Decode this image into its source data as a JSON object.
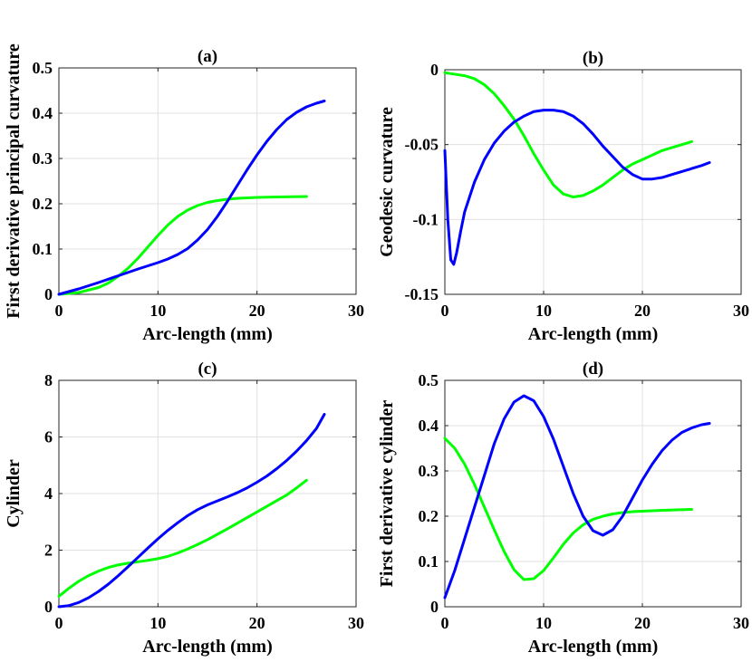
{
  "chart_data": [
    {
      "id": "a",
      "type": "line",
      "title": "(a)",
      "xlabel": "Arc-length (mm)",
      "ylabel": "First derivative principal curvature",
      "xlim": [
        0,
        30
      ],
      "ylim": [
        0,
        0.5
      ],
      "xticks": [
        0,
        10,
        20,
        30
      ],
      "yticks": [
        0,
        0.1,
        0.2,
        0.3,
        0.4,
        0.5
      ],
      "xtick_labels": [
        "0",
        "10",
        "20",
        "30"
      ],
      "ytick_labels": [
        "0",
        "0.1",
        "0.2",
        "0.3",
        "0.4",
        "0.5"
      ],
      "grid": true,
      "series": [
        {
          "name": "green",
          "color": "#00ff00",
          "x": [
            0,
            2,
            4,
            5,
            6,
            7,
            8,
            9,
            10,
            11,
            12,
            13,
            14,
            15,
            16,
            17,
            18,
            20,
            22,
            25
          ],
          "y": [
            0,
            0.004,
            0.015,
            0.025,
            0.04,
            0.058,
            0.08,
            0.105,
            0.13,
            0.153,
            0.172,
            0.186,
            0.196,
            0.203,
            0.207,
            0.21,
            0.212,
            0.214,
            0.215,
            0.216
          ]
        },
        {
          "name": "blue",
          "color": "#0000ff",
          "x": [
            0,
            2,
            4,
            6,
            8,
            10,
            11,
            12,
            13,
            14,
            15,
            16,
            17,
            18,
            19,
            20,
            21,
            22,
            23,
            24,
            25,
            26,
            26.8
          ],
          "y": [
            0,
            0.012,
            0.026,
            0.041,
            0.056,
            0.07,
            0.078,
            0.088,
            0.101,
            0.12,
            0.143,
            0.172,
            0.205,
            0.24,
            0.275,
            0.308,
            0.338,
            0.364,
            0.386,
            0.402,
            0.414,
            0.422,
            0.427
          ]
        }
      ]
    },
    {
      "id": "b",
      "type": "line",
      "title": "(b)",
      "xlabel": "Arc-length (mm)",
      "ylabel": "Geodesic curvature",
      "xlim": [
        0,
        30
      ],
      "ylim": [
        -0.15,
        0
      ],
      "xticks": [
        0,
        10,
        20,
        30
      ],
      "yticks": [
        0,
        -0.05,
        -0.1,
        -0.15
      ],
      "xtick_labels": [
        "0",
        "10",
        "20",
        "30"
      ],
      "ytick_labels": [
        "0",
        "-0.05",
        "-0.1",
        "-0.15"
      ],
      "grid": true,
      "series": [
        {
          "name": "green",
          "color": "#00ff00",
          "x": [
            0,
            2,
            3,
            4,
            5,
            6,
            7,
            8,
            9,
            10,
            11,
            12,
            13,
            14,
            15,
            16,
            17,
            18,
            19,
            20,
            21,
            22,
            23,
            24,
            25
          ],
          "y": [
            -0.002,
            -0.004,
            -0.006,
            -0.01,
            -0.016,
            -0.024,
            -0.033,
            -0.044,
            -0.056,
            -0.067,
            -0.077,
            -0.083,
            -0.085,
            -0.084,
            -0.081,
            -0.077,
            -0.072,
            -0.067,
            -0.063,
            -0.06,
            -0.057,
            -0.054,
            -0.052,
            -0.05,
            -0.048
          ]
        },
        {
          "name": "blue",
          "color": "#0000ff",
          "x": [
            0,
            0.3,
            0.6,
            0.9,
            1.2,
            1.6,
            2,
            3,
            4,
            5,
            6,
            7,
            8,
            9,
            10,
            11,
            12,
            13,
            14,
            15,
            16,
            17,
            18,
            19,
            20,
            21,
            22,
            23,
            24,
            25,
            26,
            26.8
          ],
          "y": [
            -0.054,
            -0.1,
            -0.127,
            -0.13,
            -0.122,
            -0.108,
            -0.095,
            -0.075,
            -0.06,
            -0.049,
            -0.041,
            -0.035,
            -0.031,
            -0.028,
            -0.027,
            -0.027,
            -0.028,
            -0.031,
            -0.036,
            -0.043,
            -0.051,
            -0.058,
            -0.065,
            -0.07,
            -0.073,
            -0.073,
            -0.072,
            -0.07,
            -0.068,
            -0.066,
            -0.064,
            -0.062
          ]
        }
      ]
    },
    {
      "id": "c",
      "type": "line",
      "title": "(c)",
      "xlabel": "Arc-length (mm)",
      "ylabel": "Cylinder",
      "xlim": [
        0,
        30
      ],
      "ylim": [
        0,
        8
      ],
      "xticks": [
        0,
        10,
        20,
        30
      ],
      "yticks": [
        0,
        2,
        4,
        6,
        8
      ],
      "xtick_labels": [
        "0",
        "10",
        "20",
        "30"
      ],
      "ytick_labels": [
        "0",
        "2",
        "4",
        "6",
        "8"
      ],
      "grid": true,
      "series": [
        {
          "name": "green",
          "color": "#00ff00",
          "x": [
            0,
            1,
            2,
            3,
            4,
            5,
            6,
            7,
            8,
            9,
            10,
            11,
            12,
            13,
            14,
            15,
            16,
            17,
            18,
            19,
            20,
            21,
            22,
            23,
            24,
            25
          ],
          "y": [
            0.37,
            0.65,
            0.9,
            1.1,
            1.26,
            1.39,
            1.48,
            1.54,
            1.59,
            1.64,
            1.7,
            1.78,
            1.9,
            2.04,
            2.2,
            2.37,
            2.56,
            2.75,
            2.95,
            3.15,
            3.35,
            3.55,
            3.75,
            3.95,
            4.2,
            4.47
          ]
        },
        {
          "name": "blue",
          "color": "#0000ff",
          "x": [
            0,
            1,
            2,
            3,
            4,
            5,
            6,
            7,
            8,
            9,
            10,
            11,
            12,
            13,
            14,
            15,
            16,
            17,
            18,
            19,
            20,
            21,
            22,
            23,
            24,
            25,
            26,
            26.8
          ],
          "y": [
            0,
            0.04,
            0.15,
            0.32,
            0.54,
            0.8,
            1.1,
            1.42,
            1.75,
            2.08,
            2.4,
            2.7,
            2.97,
            3.22,
            3.43,
            3.6,
            3.74,
            3.88,
            4.03,
            4.2,
            4.4,
            4.62,
            4.88,
            5.17,
            5.5,
            5.87,
            6.3,
            6.8
          ]
        }
      ]
    },
    {
      "id": "d",
      "type": "line",
      "title": "(d)",
      "xlabel": "Arc-length (mm)",
      "ylabel": "First derivative cylinder",
      "xlim": [
        0,
        30
      ],
      "ylim": [
        0,
        0.5
      ],
      "xticks": [
        0,
        10,
        20,
        30
      ],
      "yticks": [
        0,
        0.1,
        0.2,
        0.3,
        0.4,
        0.5
      ],
      "xtick_labels": [
        "0",
        "10",
        "20",
        "30"
      ],
      "ytick_labels": [
        "0",
        "0.1",
        "0.2",
        "0.3",
        "0.4",
        "0.5"
      ],
      "grid": true,
      "series": [
        {
          "name": "green",
          "color": "#00ff00",
          "x": [
            0,
            1,
            2,
            3,
            4,
            5,
            6,
            7,
            8,
            9,
            10,
            11,
            12,
            13,
            14,
            15,
            16,
            17,
            18,
            19,
            20,
            22,
            25
          ],
          "y": [
            0.372,
            0.35,
            0.315,
            0.27,
            0.22,
            0.17,
            0.122,
            0.082,
            0.06,
            0.062,
            0.08,
            0.108,
            0.138,
            0.163,
            0.181,
            0.193,
            0.2,
            0.205,
            0.208,
            0.21,
            0.211,
            0.213,
            0.215
          ]
        },
        {
          "name": "blue",
          "color": "#0000ff",
          "x": [
            0,
            1,
            2,
            3,
            4,
            5,
            6,
            7,
            8,
            9,
            10,
            11,
            12,
            13,
            14,
            15,
            16,
            17,
            18,
            19,
            20,
            21,
            22,
            23,
            24,
            25,
            26,
            26.8
          ],
          "y": [
            0.02,
            0.08,
            0.15,
            0.22,
            0.29,
            0.36,
            0.415,
            0.452,
            0.466,
            0.455,
            0.42,
            0.37,
            0.31,
            0.25,
            0.2,
            0.168,
            0.158,
            0.17,
            0.2,
            0.24,
            0.28,
            0.315,
            0.345,
            0.368,
            0.385,
            0.395,
            0.402,
            0.405
          ]
        }
      ]
    }
  ]
}
